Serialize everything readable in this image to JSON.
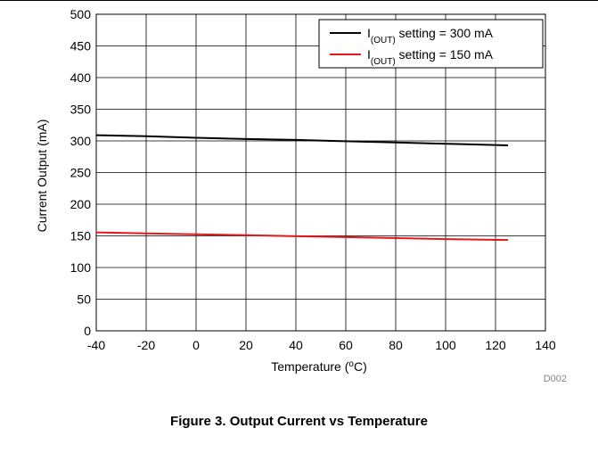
{
  "chart_data": {
    "type": "line",
    "xlabel": "Temperature (",
    "xlabel_sup": "o",
    "xlabel_end": "C)",
    "ylabel": "Current Output (mA)",
    "xlim": [
      -40,
      140
    ],
    "ylim": [
      0,
      500
    ],
    "xticks": [
      -40,
      -20,
      0,
      20,
      40,
      60,
      80,
      100,
      120,
      140
    ],
    "yticks": [
      0,
      50,
      100,
      150,
      200,
      250,
      300,
      350,
      400,
      450,
      500
    ],
    "grid": true,
    "legend_position": "top-right",
    "series": [
      {
        "name_main": "I",
        "name_sub": "(OUT)",
        "name_rest": " setting = 300 mA",
        "color": "#000000",
        "x": [
          -40,
          -20,
          0,
          20,
          40,
          60,
          80,
          100,
          125
        ],
        "y": [
          309,
          307.5,
          305,
          303,
          301.5,
          299.5,
          297.5,
          295.5,
          293
        ]
      },
      {
        "name_main": "I",
        "name_sub": "(OUT)",
        "name_rest": " setting = 150 mA",
        "color": "#e8161b",
        "x": [
          -40,
          -20,
          0,
          20,
          40,
          60,
          80,
          100,
          125
        ],
        "y": [
          155.5,
          154,
          152.5,
          151,
          149.5,
          148,
          146.5,
          145,
          143.5
        ]
      }
    ],
    "annotation": "D002"
  },
  "caption": "Figure 3. Output Current vs Temperature"
}
